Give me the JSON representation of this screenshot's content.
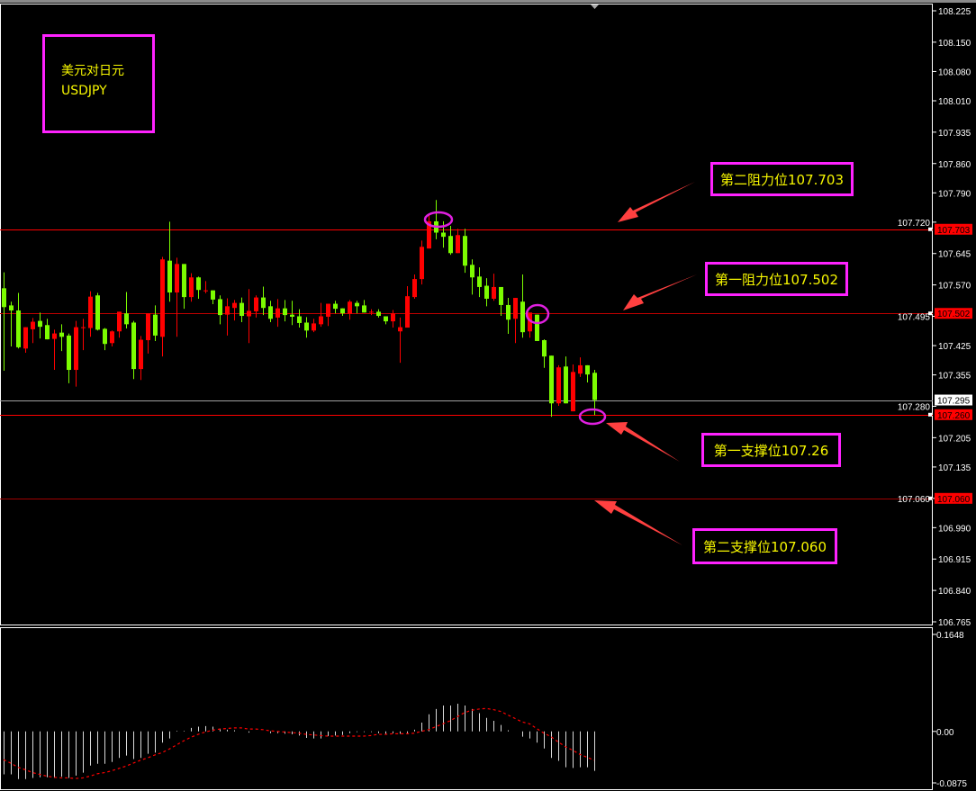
{
  "symbol": {
    "name_cn": "美元对日元",
    "ticker": "USDJPY"
  },
  "colors": {
    "up": "#ff0000",
    "down": "#7cfc00",
    "background": "#000000",
    "annotation_box": "#ff22ff",
    "annotation_text": "#f7f700",
    "arrow": "#ff4040",
    "signal": "#ff0000",
    "histogram": "#d9d9d9"
  },
  "annotations": [
    {
      "label": "第二阻力位107.703",
      "level": 107.703
    },
    {
      "label": "第一阻力位107.502",
      "level": 107.502
    },
    {
      "label": "第一支撑位107.26",
      "level": 107.26
    },
    {
      "label": "第二支撑位107.060",
      "level": 107.06
    }
  ],
  "chart_data": [
    {
      "type": "candlestick",
      "ylim": [
        106.765,
        108.225
      ],
      "y_ticks": [
        "108.225",
        "108.150",
        "108.080",
        "108.010",
        "107.935",
        "107.860",
        "107.790",
        "107.720",
        "107.645",
        "107.570",
        "107.495",
        "107.425",
        "107.355",
        "107.280",
        "107.205",
        "107.135",
        "107.060",
        "106.990",
        "106.915",
        "106.840",
        "106.765"
      ],
      "price_tags": [
        {
          "text": "107.703",
          "value": 107.703,
          "style": "red"
        },
        {
          "text": "107.502",
          "value": 107.502,
          "style": "red"
        },
        {
          "text": "107.295",
          "value": 107.295,
          "style": "white"
        },
        {
          "text": "107.260",
          "value": 107.26,
          "style": "red"
        },
        {
          "text": "107.060",
          "value": 107.06,
          "style": "red"
        }
      ],
      "horizontal_lines": [
        {
          "value": 107.703,
          "color": "#ff0000"
        },
        {
          "value": 107.502,
          "color": "#c00000"
        },
        {
          "value": 107.295,
          "color": "#a0a0a0"
        },
        {
          "value": 107.26,
          "color": "#ff0000"
        },
        {
          "value": 107.06,
          "color": "#a00000"
        }
      ],
      "ohlc": [
        [
          107.562,
          107.6,
          107.365,
          107.517
        ],
        [
          107.521,
          107.53,
          107.423,
          107.509
        ],
        [
          107.509,
          107.551,
          107.418,
          107.421
        ],
        [
          107.418,
          107.469,
          107.408,
          107.469
        ],
        [
          107.464,
          107.491,
          107.431,
          107.482
        ],
        [
          107.484,
          107.504,
          107.442,
          107.47
        ],
        [
          107.474,
          107.489,
          107.44,
          107.44
        ],
        [
          107.441,
          107.463,
          107.367,
          107.454
        ],
        [
          107.456,
          107.476,
          107.412,
          107.446
        ],
        [
          107.449,
          107.454,
          107.335,
          107.367
        ],
        [
          107.367,
          107.484,
          107.327,
          107.469
        ],
        [
          107.469,
          107.489,
          107.414,
          107.469
        ],
        [
          107.467,
          107.555,
          107.446,
          107.542
        ],
        [
          107.545,
          107.551,
          107.461,
          107.463
        ],
        [
          107.465,
          107.467,
          107.414,
          107.429
        ],
        [
          107.431,
          107.461,
          107.423,
          107.459
        ],
        [
          107.459,
          107.506,
          107.444,
          107.506
        ],
        [
          107.502,
          107.553,
          107.466,
          107.476
        ],
        [
          107.48,
          107.484,
          107.345,
          107.369
        ],
        [
          107.369,
          107.448,
          107.343,
          107.439
        ],
        [
          107.438,
          107.502,
          107.406,
          107.502
        ],
        [
          107.499,
          107.521,
          107.436,
          107.449
        ],
        [
          107.446,
          107.637,
          107.399,
          107.631
        ],
        [
          107.628,
          107.721,
          107.53,
          107.552
        ],
        [
          107.552,
          107.635,
          107.446,
          107.62
        ],
        [
          107.62,
          107.62,
          107.513,
          107.541
        ],
        [
          107.541,
          107.598,
          107.53,
          107.588
        ],
        [
          107.588,
          107.59,
          107.537,
          107.558
        ],
        [
          107.557,
          107.579,
          107.55,
          107.557
        ],
        [
          107.557,
          107.557,
          107.524,
          107.535
        ],
        [
          107.536,
          107.545,
          107.476,
          107.498
        ],
        [
          107.499,
          107.538,
          107.449,
          107.519
        ],
        [
          107.515,
          107.534,
          107.485,
          107.527
        ],
        [
          107.527,
          107.54,
          107.481,
          107.496
        ],
        [
          107.495,
          107.56,
          107.431,
          107.508
        ],
        [
          107.507,
          107.545,
          107.492,
          107.54
        ],
        [
          107.54,
          107.566,
          107.498,
          107.515
        ],
        [
          107.519,
          107.532,
          107.481,
          107.489
        ],
        [
          107.492,
          107.536,
          107.47,
          107.514
        ],
        [
          107.514,
          107.534,
          107.483,
          107.498
        ],
        [
          107.499,
          107.532,
          107.474,
          107.494
        ],
        [
          107.495,
          107.512,
          107.468,
          107.479
        ],
        [
          107.48,
          107.493,
          107.444,
          107.461
        ],
        [
          107.461,
          107.489,
          107.457,
          107.478
        ],
        [
          107.476,
          107.527,
          107.47,
          107.495
        ],
        [
          107.494,
          107.525,
          107.472,
          107.525
        ],
        [
          107.525,
          107.532,
          107.502,
          107.513
        ],
        [
          107.514,
          107.514,
          107.496,
          107.502
        ],
        [
          107.501,
          107.534,
          107.487,
          107.53
        ],
        [
          107.527,
          107.532,
          107.502,
          107.519
        ],
        [
          107.521,
          107.534,
          107.504,
          107.504
        ],
        [
          107.506,
          107.512,
          107.498,
          107.506
        ],
        [
          107.506,
          107.512,
          107.492,
          107.496
        ],
        [
          107.495,
          107.495,
          107.476,
          107.483
        ],
        [
          107.483,
          107.51,
          107.468,
          107.502
        ],
        [
          107.459,
          107.492,
          107.384,
          107.469
        ],
        [
          107.468,
          107.567,
          107.468,
          107.543
        ],
        [
          107.541,
          107.595,
          107.537,
          107.584
        ],
        [
          107.584,
          107.676,
          107.571,
          107.661
        ],
        [
          107.657,
          107.74,
          107.657,
          107.722
        ],
        [
          107.722,
          107.773,
          107.679,
          107.695
        ],
        [
          107.695,
          107.722,
          107.659,
          107.685
        ],
        [
          107.687,
          107.711,
          107.642,
          107.646
        ],
        [
          107.646,
          107.704,
          107.646,
          107.689
        ],
        [
          107.687,
          107.704,
          107.599,
          107.616
        ],
        [
          107.618,
          107.631,
          107.547,
          107.588
        ],
        [
          107.59,
          107.612,
          107.541,
          107.565
        ],
        [
          107.568,
          107.586,
          107.519,
          107.537
        ],
        [
          107.537,
          107.597,
          107.532,
          107.565
        ],
        [
          107.565,
          107.565,
          107.496,
          107.522
        ],
        [
          107.522,
          107.539,
          107.453,
          107.487
        ],
        [
          107.489,
          107.539,
          107.431,
          107.539
        ],
        [
          107.53,
          107.595,
          107.444,
          107.457
        ],
        [
          107.459,
          107.504,
          107.444,
          107.504
        ],
        [
          107.499,
          107.499,
          107.436,
          107.436
        ],
        [
          107.438,
          107.44,
          107.372,
          107.399
        ],
        [
          107.401,
          107.401,
          107.255,
          107.287
        ],
        [
          107.287,
          107.378,
          107.281,
          107.373
        ],
        [
          107.375,
          107.399,
          107.287,
          107.287
        ],
        [
          107.268,
          107.38,
          107.268,
          107.362
        ],
        [
          107.358,
          107.397,
          107.35,
          107.378
        ],
        [
          107.378,
          107.378,
          107.337,
          107.356
        ],
        [
          107.36,
          107.367,
          107.259,
          107.295
        ]
      ]
    },
    {
      "type": "bar+line",
      "ylim": [
        -0.0875,
        0.1648
      ],
      "y_ticks": [
        "0.1648",
        "0.00",
        "-0.0875"
      ],
      "histogram": [
        -0.073,
        -0.073,
        -0.081,
        -0.081,
        -0.079,
        -0.078,
        -0.078,
        -0.079,
        -0.077,
        -0.079,
        -0.075,
        -0.07,
        -0.058,
        -0.055,
        -0.055,
        -0.052,
        -0.045,
        -0.041,
        -0.047,
        -0.045,
        -0.038,
        -0.036,
        -0.019,
        -0.012,
        0.001,
        0.001,
        0.006,
        0.008,
        0.009,
        0.008,
        0.005,
        0.003,
        0.002,
        0.0,
        -0.002,
        0.0,
        0.0,
        -0.003,
        -0.003,
        -0.004,
        -0.005,
        -0.007,
        -0.011,
        -0.012,
        -0.012,
        -0.008,
        -0.007,
        -0.006,
        -0.003,
        -0.001,
        -0.001,
        -0.001,
        -0.003,
        -0.004,
        -0.003,
        -0.004,
        -0.003,
        0.003,
        0.015,
        0.029,
        0.038,
        0.044,
        0.044,
        0.047,
        0.044,
        0.038,
        0.031,
        0.023,
        0.018,
        0.011,
        0.002,
        0.0,
        -0.009,
        -0.012,
        -0.019,
        -0.029,
        -0.045,
        -0.05,
        -0.061,
        -0.062,
        -0.061,
        -0.061,
        -0.067
      ],
      "signal": [
        -0.048,
        -0.054,
        -0.061,
        -0.065,
        -0.07,
        -0.073,
        -0.076,
        -0.078,
        -0.079,
        -0.079,
        -0.08,
        -0.079,
        -0.076,
        -0.072,
        -0.07,
        -0.067,
        -0.063,
        -0.059,
        -0.054,
        -0.049,
        -0.045,
        -0.04,
        -0.036,
        -0.03,
        -0.023,
        -0.016,
        -0.01,
        -0.005,
        -0.001,
        0.002,
        0.004,
        0.005,
        0.006,
        0.006,
        0.004,
        0.004,
        0.003,
        0.001,
        0.0,
        -0.001,
        -0.002,
        -0.003,
        -0.005,
        -0.006,
        -0.007,
        -0.008,
        -0.008,
        -0.008,
        -0.008,
        -0.008,
        -0.008,
        -0.007,
        -0.005,
        -0.005,
        -0.004,
        -0.004,
        -0.004,
        -0.003,
        0.0,
        0.003,
        0.008,
        0.013,
        0.018,
        0.025,
        0.032,
        0.036,
        0.038,
        0.039,
        0.037,
        0.034,
        0.028,
        0.022,
        0.016,
        0.013,
        0.005,
        -0.003,
        -0.009,
        -0.018,
        -0.026,
        -0.032,
        -0.039,
        -0.044,
        -0.049
      ]
    }
  ]
}
